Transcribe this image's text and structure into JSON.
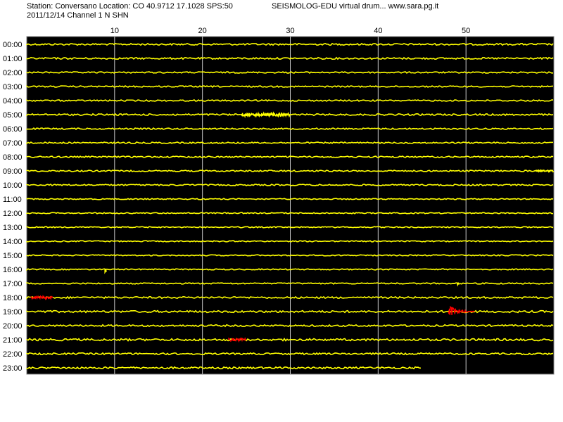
{
  "header": {
    "station_line": "Station: Conversano Location: CO 40.9712 17.1028 SPS:50",
    "drum_title": "SEISMOLOG-EDU virtual drum... www.sara.pg.it",
    "date_line": "2011/12/14  Channel 1 N SHN"
  },
  "colors": {
    "background": "#000000",
    "trace": "#ffff00",
    "event": "#ff0000",
    "gridline": "#c8c8c8",
    "outer": "#ffffff"
  },
  "chart_data": {
    "type": "line",
    "title": "SEISMOLOG-EDU virtual drum... www.sara.pg.it",
    "xlabel": "",
    "ylabel": "",
    "x_unit": "minutes",
    "xlim": [
      0,
      60
    ],
    "x_ticks": [
      10,
      20,
      30,
      40,
      50
    ],
    "grid": true,
    "rows": [
      {
        "hour": "00:00",
        "end_minute": 60,
        "noise": 1.2
      },
      {
        "hour": "01:00",
        "end_minute": 60,
        "noise": 1.2
      },
      {
        "hour": "02:00",
        "end_minute": 60,
        "noise": 1.0
      },
      {
        "hour": "03:00",
        "end_minute": 60,
        "noise": 1.0
      },
      {
        "hour": "04:00",
        "end_minute": 60,
        "noise": 1.0
      },
      {
        "hour": "05:00",
        "end_minute": 60,
        "noise": 1.2
      },
      {
        "hour": "06:00",
        "end_minute": 60,
        "noise": 1.0
      },
      {
        "hour": "07:00",
        "end_minute": 60,
        "noise": 1.0
      },
      {
        "hour": "08:00",
        "end_minute": 60,
        "noise": 1.0
      },
      {
        "hour": "09:00",
        "end_minute": 60,
        "noise": 1.0
      },
      {
        "hour": "10:00",
        "end_minute": 60,
        "noise": 1.0
      },
      {
        "hour": "11:00",
        "end_minute": 60,
        "noise": 0.8
      },
      {
        "hour": "12:00",
        "end_minute": 60,
        "noise": 0.8
      },
      {
        "hour": "13:00",
        "end_minute": 60,
        "noise": 0.8
      },
      {
        "hour": "14:00",
        "end_minute": 60,
        "noise": 0.8
      },
      {
        "hour": "15:00",
        "end_minute": 60,
        "noise": 0.8
      },
      {
        "hour": "16:00",
        "end_minute": 60,
        "noise": 0.8
      },
      {
        "hour": "17:00",
        "end_minute": 60,
        "noise": 0.9
      },
      {
        "hour": "18:00",
        "end_minute": 60,
        "noise": 1.2
      },
      {
        "hour": "19:00",
        "end_minute": 60,
        "noise": 1.4
      },
      {
        "hour": "20:00",
        "end_minute": 60,
        "noise": 1.2
      },
      {
        "hour": "21:00",
        "end_minute": 60,
        "noise": 1.5
      },
      {
        "hour": "22:00",
        "end_minute": 60,
        "noise": 1.2
      },
      {
        "hour": "23:00",
        "end_minute": 45,
        "noise": 1.3
      }
    ],
    "bursts": [
      {
        "row": 5,
        "start": 24.5,
        "end": 30.0,
        "amp": 2.5,
        "color": "#ffff00"
      },
      {
        "row": 9,
        "start": 58.0,
        "end": 60.0,
        "amp": 1.5,
        "color": "#ffff00"
      },
      {
        "row": 16,
        "start": 8.9,
        "end": 9.1,
        "amp": 6.0,
        "color": "#ffff00"
      },
      {
        "row": 17,
        "start": 49.0,
        "end": 49.2,
        "amp": 5.0,
        "color": "#ffff00"
      }
    ],
    "events": [
      {
        "row": 18,
        "start": 0.5,
        "end": 3.0,
        "amp": 2.0,
        "color": "#ff0000"
      },
      {
        "row": 19,
        "start": 48.0,
        "end": 51.0,
        "amp": 10.0,
        "color": "#ff0000"
      },
      {
        "row": 21,
        "start": 23.0,
        "end": 25.0,
        "amp": 2.0,
        "color": "#ff0000"
      }
    ]
  }
}
